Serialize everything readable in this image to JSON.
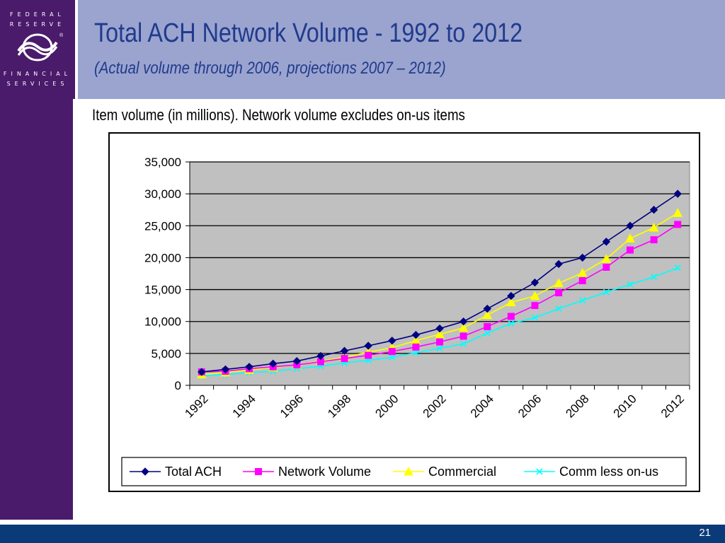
{
  "logo": {
    "line1": "FEDERAL",
    "line2": "RESERVE",
    "line3": "FINANCIAL",
    "line4": "SERVICES",
    "registered": "®"
  },
  "title": "Total ACH Network Volume - 1992 to 2012",
  "subtitle": "(Actual volume through 2006, projections 2007 – 2012)",
  "caption": "Item volume (in millions).  Network volume excludes on-us items",
  "page_number": "21",
  "colors": {
    "logo_bg": "#4a1a6b",
    "header_bg": "#9ba3cf",
    "title_text": "#1f3b8c",
    "footer_bg": "#0b3a78",
    "plot_bg": "#c0c0c0"
  },
  "chart_data": {
    "type": "line",
    "title": "",
    "xlabel": "",
    "ylabel": "",
    "x": [
      1992,
      1993,
      1994,
      1995,
      1996,
      1997,
      1998,
      1999,
      2000,
      2001,
      2002,
      2003,
      2004,
      2005,
      2006,
      2007,
      2008,
      2009,
      2010,
      2011,
      2012
    ],
    "x_tick_labels": [
      "1992",
      "1994",
      "1996",
      "1998",
      "2000",
      "2002",
      "2004",
      "2006",
      "2008",
      "2010",
      "2012"
    ],
    "y_ticks": [
      0,
      5000,
      10000,
      15000,
      20000,
      25000,
      30000,
      35000
    ],
    "y_tick_labels": [
      "0",
      "5,000",
      "10,000",
      "15,000",
      "20,000",
      "25,000",
      "30,000",
      "35,000"
    ],
    "ylim": [
      0,
      35000
    ],
    "grid": "horizontal",
    "legend": "bottom",
    "series": [
      {
        "name": "Total ACH",
        "color": "#000080",
        "marker": "diamond",
        "values": [
          2100,
          2500,
          2900,
          3400,
          3800,
          4600,
          5400,
          6200,
          7000,
          7900,
          8900,
          10000,
          12000,
          14000,
          16100,
          19000,
          20000,
          22500,
          25000,
          27500,
          30000
        ]
      },
      {
        "name": "Network Volume",
        "color": "#ff00ff",
        "marker": "square",
        "values": [
          2100,
          2200,
          2600,
          2900,
          3200,
          3700,
          4200,
          4700,
          5300,
          6000,
          6800,
          7700,
          9200,
          10800,
          12500,
          14500,
          16400,
          18500,
          21200,
          22800,
          25200
        ]
      },
      {
        "name": "Commercial",
        "color": "#ffff00",
        "marker": "triangle",
        "values": [
          1700,
          2000,
          2400,
          2800,
          3200,
          3800,
          4400,
          5200,
          5900,
          7000,
          8000,
          9000,
          11000,
          13000,
          14000,
          16000,
          17600,
          19800,
          23000,
          24700,
          27000
        ]
      },
      {
        "name": "Comm less on-us",
        "color": "#00ffff",
        "marker": "x",
        "values": [
          1500,
          1700,
          2000,
          2200,
          2600,
          3000,
          3500,
          3900,
          4400,
          5100,
          5800,
          6500,
          8200,
          9700,
          10600,
          12000,
          13300,
          14600,
          15800,
          17000,
          18400
        ]
      }
    ]
  }
}
